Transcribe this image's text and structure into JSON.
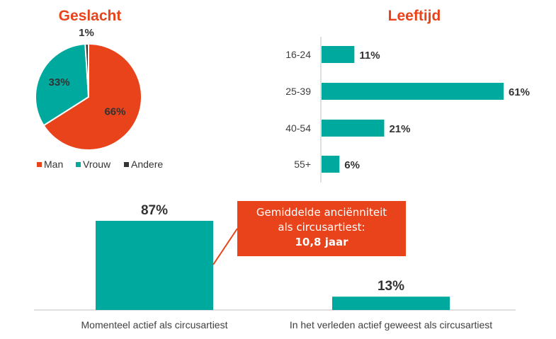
{
  "colors": {
    "orange": "#E8431A",
    "teal": "#00A99D",
    "dark": "#333333",
    "axis": "#BFBFBF"
  },
  "callout": {
    "line1": "Gemiddelde anciënniteit",
    "line2": "als circusartiest:",
    "line3": "10,8 jaar"
  },
  "chart_data": [
    {
      "type": "pie",
      "title": "Geslacht",
      "categories": [
        "Man",
        "Vrouw",
        "Andere"
      ],
      "values": [
        66,
        33,
        1
      ],
      "labels": [
        "66%",
        "33%",
        "1%"
      ],
      "legend_position": "bottom"
    },
    {
      "type": "bar",
      "orientation": "horizontal",
      "title": "Leeftijd",
      "categories": [
        "16-24",
        "25-39",
        "40-54",
        "55+"
      ],
      "values": [
        11,
        61,
        21,
        6
      ],
      "labels": [
        "11%",
        "61%",
        "21%",
        "6%"
      ]
    },
    {
      "type": "bar",
      "orientation": "vertical",
      "title": "",
      "categories": [
        "Momenteel actief als circusartiest",
        "In het verleden actief geweest als circusartiest"
      ],
      "values": [
        87,
        13
      ],
      "labels": [
        "87%",
        "13%"
      ]
    }
  ]
}
